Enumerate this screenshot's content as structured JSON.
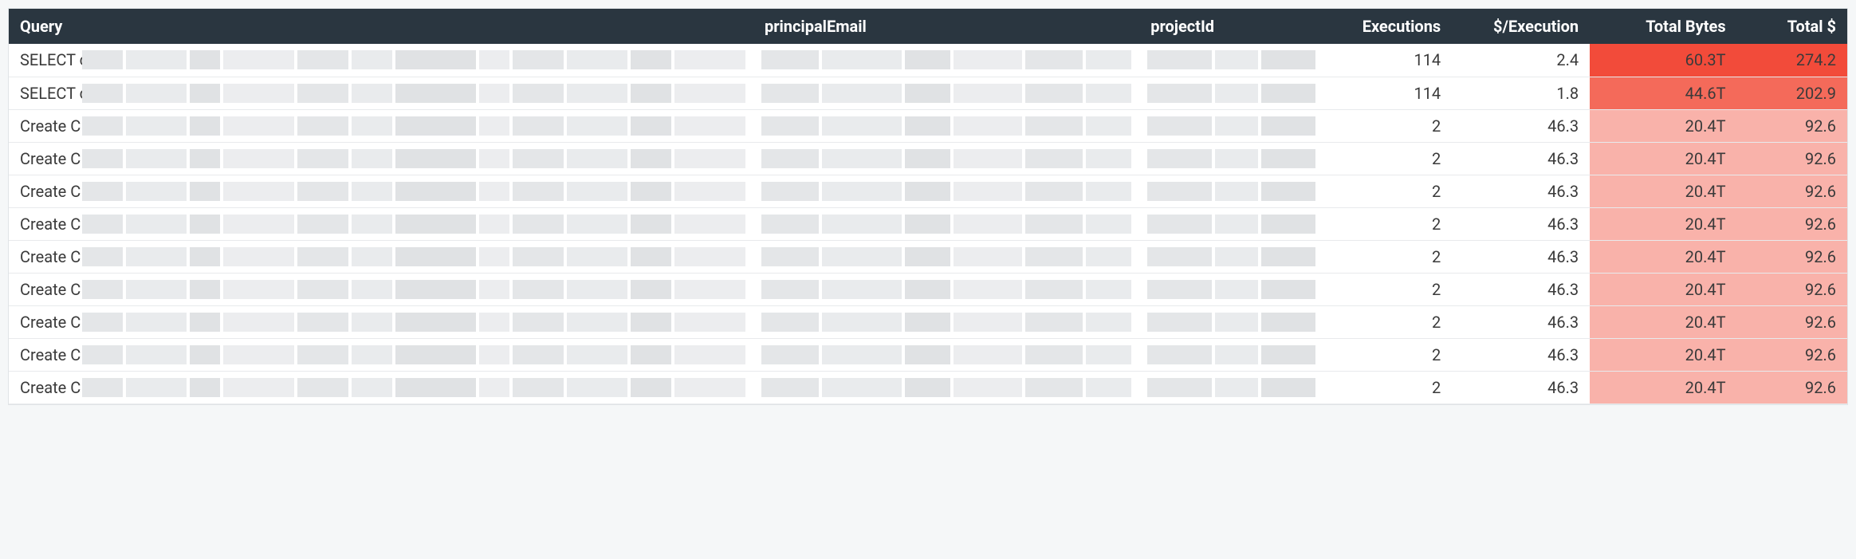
{
  "table": {
    "type": "table",
    "background_color": "#ffffff",
    "border_color": "#e0e4e7",
    "row_border_color": "#e8eaec",
    "header_bg": "#2a3640",
    "header_text_color": "#ffffff",
    "text_color": "#3a3a3a",
    "redacted_color": "#e4e6e8",
    "font_size": 20,
    "columns": [
      {
        "key": "query",
        "label": "Query",
        "width": "40.5%",
        "align": "left"
      },
      {
        "key": "principalEmail",
        "label": "principalEmail",
        "width": "21%",
        "align": "left"
      },
      {
        "key": "projectId",
        "label": "projectId",
        "width": "10%",
        "align": "left"
      },
      {
        "key": "executions",
        "label": "Executions",
        "width": "7%",
        "align": "right"
      },
      {
        "key": "costPerExecution",
        "label": "$/Execution",
        "width": "7.5%",
        "align": "right"
      },
      {
        "key": "totalBytes",
        "label": "Total Bytes",
        "width": "8%",
        "align": "right"
      },
      {
        "key": "totalCost",
        "label": "Total $",
        "width": "6%",
        "align": "right"
      }
    ],
    "heatmap": {
      "colors": {
        "high": "#f24b3a",
        "med_high": "#f46a5a",
        "med": "#f9b2aa",
        "low": "#f9b2aa"
      }
    },
    "rows": [
      {
        "query": "SELECT c",
        "executions": "114",
        "costPerExecution": "2.4",
        "totalBytes": "60.3T",
        "totalCost": "274.2",
        "bytes_bg": "#f24b3a",
        "cost_bg": "#f24b3a"
      },
      {
        "query": "SELECT c",
        "executions": "114",
        "costPerExecution": "1.8",
        "totalBytes": "44.6T",
        "totalCost": "202.9",
        "bytes_bg": "#f46a5a",
        "cost_bg": "#f46a5a"
      },
      {
        "query": "Create C",
        "executions": "2",
        "costPerExecution": "46.3",
        "totalBytes": "20.4T",
        "totalCost": "92.6",
        "bytes_bg": "#f9b2aa",
        "cost_bg": "#f9b2aa"
      },
      {
        "query": "Create C",
        "executions": "2",
        "costPerExecution": "46.3",
        "totalBytes": "20.4T",
        "totalCost": "92.6",
        "bytes_bg": "#f9b2aa",
        "cost_bg": "#f9b2aa"
      },
      {
        "query": "Create C",
        "executions": "2",
        "costPerExecution": "46.3",
        "totalBytes": "20.4T",
        "totalCost": "92.6",
        "bytes_bg": "#f9b2aa",
        "cost_bg": "#f9b2aa"
      },
      {
        "query": "Create C",
        "executions": "2",
        "costPerExecution": "46.3",
        "totalBytes": "20.4T",
        "totalCost": "92.6",
        "bytes_bg": "#f9b2aa",
        "cost_bg": "#f9b2aa"
      },
      {
        "query": "Create C",
        "executions": "2",
        "costPerExecution": "46.3",
        "totalBytes": "20.4T",
        "totalCost": "92.6",
        "bytes_bg": "#f9b2aa",
        "cost_bg": "#f9b2aa"
      },
      {
        "query": "Create C",
        "executions": "2",
        "costPerExecution": "46.3",
        "totalBytes": "20.4T",
        "totalCost": "92.6",
        "bytes_bg": "#f9b2aa",
        "cost_bg": "#f9b2aa"
      },
      {
        "query": "Create C",
        "executions": "2",
        "costPerExecution": "46.3",
        "totalBytes": "20.4T",
        "totalCost": "92.6",
        "bytes_bg": "#f9b2aa",
        "cost_bg": "#f9b2aa"
      },
      {
        "query": "Create C",
        "executions": "2",
        "costPerExecution": "46.3",
        "totalBytes": "20.4T",
        "totalCost": "92.6",
        "bytes_bg": "#f9b2aa",
        "cost_bg": "#f9b2aa"
      },
      {
        "query": "Create C",
        "executions": "2",
        "costPerExecution": "46.3",
        "totalBytes": "20.4T",
        "totalCost": "92.6",
        "bytes_bg": "#f9b2aa",
        "cost_bg": "#f9b2aa"
      }
    ],
    "redaction_pattern": {
      "query_blocks": [
        8,
        12,
        6,
        14,
        10,
        8,
        16,
        6,
        10,
        12,
        8,
        14
      ],
      "email_blocks": [
        10,
        14,
        8,
        12,
        10,
        8
      ],
      "project_blocks": [
        12,
        8,
        10
      ]
    }
  }
}
